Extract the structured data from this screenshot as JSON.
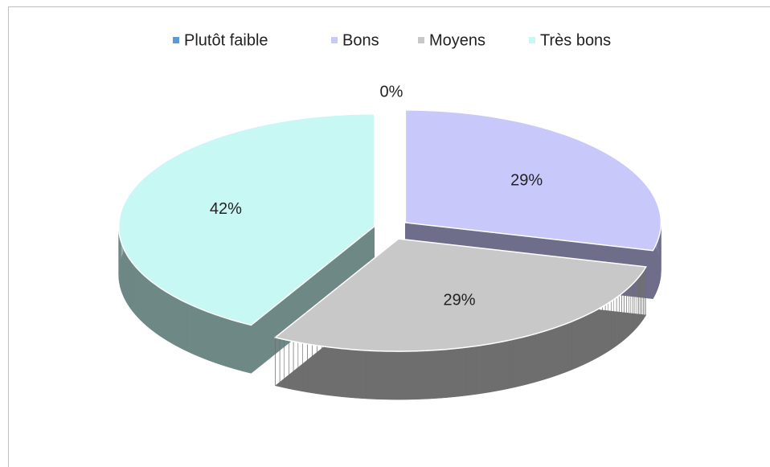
{
  "chart_data": {
    "type": "pie",
    "three_d": true,
    "categories": [
      "Plutôt faible",
      "Bons",
      "Moyens",
      "Très bons"
    ],
    "values": [
      0,
      29,
      29,
      42
    ],
    "value_labels": [
      "0%",
      "29%",
      "29%",
      "42%"
    ],
    "colors": [
      "#5b9bd5",
      "#c8c8fa",
      "#c8c8c8",
      "#c8f8f4"
    ],
    "legend": "top"
  }
}
